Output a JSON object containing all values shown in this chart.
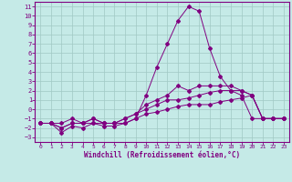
{
  "xlabel": "Windchill (Refroidissement éolien,°C)",
  "bg_color": "#c5eae7",
  "grid_color": "#a0c8c4",
  "line_color": "#800080",
  "xlim": [
    -0.5,
    23.5
  ],
  "ylim": [
    -3.5,
    11.5
  ],
  "xticks": [
    0,
    1,
    2,
    3,
    4,
    5,
    6,
    7,
    8,
    9,
    10,
    11,
    12,
    13,
    14,
    15,
    16,
    17,
    18,
    19,
    20,
    21,
    22,
    23
  ],
  "yticks": [
    -3,
    -2,
    -1,
    0,
    1,
    2,
    3,
    4,
    5,
    6,
    7,
    8,
    9,
    10,
    11
  ],
  "x": [
    0,
    1,
    2,
    3,
    4,
    5,
    6,
    7,
    8,
    9,
    10,
    11,
    12,
    13,
    14,
    15,
    16,
    17,
    18,
    19,
    20,
    21,
    22,
    23
  ],
  "line1": [
    -1.5,
    -1.5,
    -2.0,
    -1.5,
    -1.5,
    -1.5,
    -1.5,
    -1.5,
    -1.5,
    -1.0,
    1.5,
    4.5,
    7.0,
    9.5,
    11.0,
    10.5,
    6.5,
    3.5,
    2.0,
    1.5,
    -1.0,
    -1.0,
    -1.0,
    -1.0
  ],
  "line2": [
    -1.5,
    -1.5,
    -1.5,
    -1.0,
    -1.5,
    -1.0,
    -1.5,
    -1.5,
    -1.0,
    -0.5,
    0.5,
    1.0,
    1.5,
    2.5,
    2.0,
    2.5,
    2.5,
    2.5,
    2.5,
    2.0,
    1.5,
    -1.0,
    -1.0,
    -1.0
  ],
  "line3": [
    -1.5,
    -1.5,
    -2.0,
    -1.5,
    -1.5,
    -1.0,
    -1.5,
    -1.5,
    -1.0,
    -0.5,
    0.0,
    0.5,
    1.0,
    1.0,
    1.2,
    1.5,
    1.8,
    2.0,
    2.0,
    2.0,
    1.5,
    -1.0,
    -1.0,
    -1.0
  ],
  "line4": [
    -1.5,
    -1.5,
    -2.5,
    -1.8,
    -2.0,
    -1.5,
    -1.8,
    -1.8,
    -1.5,
    -1.0,
    -0.5,
    -0.3,
    0.0,
    0.3,
    0.5,
    0.5,
    0.5,
    0.8,
    1.0,
    1.2,
    1.5,
    -1.0,
    -1.0,
    -1.0
  ]
}
